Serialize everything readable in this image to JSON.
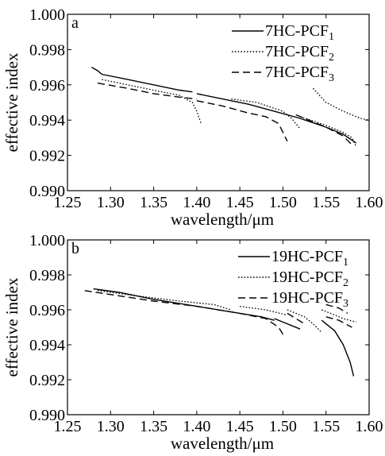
{
  "chart_data": [
    {
      "type": "line",
      "panel_label": "a",
      "xlabel": "wavelength/μm",
      "ylabel": "effective index",
      "xlim": [
        1.25,
        1.6
      ],
      "ylim": [
        0.99,
        1.0
      ],
      "xticks": [
        "1.25",
        "1.30",
        "1.35",
        "1.40",
        "1.45",
        "1.50",
        "1.55",
        "1.60"
      ],
      "yticks": [
        "0.990",
        "0.992",
        "0.994",
        "0.996",
        "0.998",
        "1.000"
      ],
      "legend_position": "top-right",
      "series": [
        {
          "name_main": "7HC-PCF",
          "name_sub": "1",
          "style": "solid",
          "segments": [
            [
              [
                1.278,
                0.997
              ],
              [
                1.285,
                0.9968
              ],
              [
                1.29,
                0.9966
              ],
              [
                1.32,
                0.9963
              ],
              [
                1.35,
                0.996
              ],
              [
                1.38,
                0.9957
              ],
              [
                1.395,
                0.9956
              ]
            ],
            [
              [
                1.4,
                0.9955
              ],
              [
                1.43,
                0.9952
              ],
              [
                1.46,
                0.9949
              ],
              [
                1.49,
                0.9945
              ],
              [
                1.52,
                0.9941
              ],
              [
                1.55,
                0.9936
              ],
              [
                1.57,
                0.9932
              ],
              [
                1.585,
                0.9927
              ]
            ]
          ]
        },
        {
          "name_main": "7HC-PCF",
          "name_sub": "2",
          "style": "dotted",
          "segments": [
            [
              [
                1.29,
                0.9963
              ],
              [
                1.32,
                0.996
              ],
              [
                1.35,
                0.9957
              ],
              [
                1.38,
                0.9954
              ],
              [
                1.395,
                0.995
              ],
              [
                1.4,
                0.9945
              ],
              [
                1.405,
                0.9938
              ]
            ],
            [
              [
                1.44,
                0.9952
              ],
              [
                1.47,
                0.995
              ],
              [
                1.5,
                0.9945
              ],
              [
                1.51,
                0.9941
              ],
              [
                1.52,
                0.9935
              ]
            ],
            [
              [
                1.52,
                0.9942
              ],
              [
                1.55,
                0.9937
              ],
              [
                1.57,
                0.9933
              ],
              [
                1.58,
                0.993
              ],
              [
                1.585,
                0.9925
              ]
            ],
            [
              [
                1.535,
                0.9958
              ],
              [
                1.55,
                0.995
              ],
              [
                1.57,
                0.9945
              ],
              [
                1.59,
                0.9941
              ],
              [
                1.6,
                0.994
              ]
            ]
          ]
        },
        {
          "name_main": "7HC-PCF",
          "name_sub": "3",
          "style": "dashed",
          "segments": [
            [
              [
                1.285,
                0.9961
              ],
              [
                1.32,
                0.9958
              ],
              [
                1.35,
                0.9955
              ],
              [
                1.38,
                0.9953
              ],
              [
                1.4,
                0.9952
              ]
            ],
            [
              [
                1.4,
                0.9951
              ],
              [
                1.43,
                0.9948
              ],
              [
                1.46,
                0.9944
              ],
              [
                1.48,
                0.9942
              ],
              [
                1.495,
                0.9938
              ],
              [
                1.505,
                0.9928
              ]
            ],
            [
              [
                1.515,
                0.9943
              ],
              [
                1.53,
                0.994
              ],
              [
                1.55,
                0.9936
              ],
              [
                1.57,
                0.9931
              ],
              [
                1.58,
                0.9926
              ]
            ]
          ]
        }
      ]
    },
    {
      "type": "line",
      "panel_label": "b",
      "xlabel": "wavelength/μm",
      "ylabel": "effective index",
      "xlim": [
        1.25,
        1.6
      ],
      "ylim": [
        0.99,
        1.0
      ],
      "xticks": [
        "1.25",
        "1.30",
        "1.35",
        "1.40",
        "1.45",
        "1.50",
        "1.55",
        "1.60"
      ],
      "yticks": [
        "0.990",
        "0.992",
        "0.994",
        "0.996",
        "0.998",
        "1.000"
      ],
      "legend_position": "top-right",
      "series": [
        {
          "name_main": "19HC-PCF",
          "name_sub": "1",
          "style": "solid",
          "segments": [
            [
              [
                1.28,
                0.9972
              ],
              [
                1.31,
                0.997
              ],
              [
                1.35,
                0.9966
              ],
              [
                1.4,
                0.9962
              ],
              [
                1.45,
                0.9958
              ],
              [
                1.475,
                0.9956
              ],
              [
                1.49,
                0.9954
              ]
            ],
            [
              [
                1.49,
                0.9955
              ],
              [
                1.5,
                0.9953
              ],
              [
                1.51,
                0.9951
              ],
              [
                1.52,
                0.9949
              ]
            ],
            [
              [
                1.545,
                0.9954
              ],
              [
                1.56,
                0.9948
              ],
              [
                1.57,
                0.994
              ],
              [
                1.578,
                0.993
              ],
              [
                1.582,
                0.9922
              ]
            ]
          ]
        },
        {
          "name_main": "19HC-PCF",
          "name_sub": "2",
          "style": "dotted",
          "segments": [
            [
              [
                1.285,
                0.9971
              ],
              [
                1.33,
                0.9968
              ],
              [
                1.38,
                0.9965
              ],
              [
                1.42,
                0.9963
              ],
              [
                1.44,
                0.996
              ]
            ],
            [
              [
                1.45,
                0.9962
              ],
              [
                1.48,
                0.996
              ],
              [
                1.505,
                0.9957
              ]
            ],
            [
              [
                1.505,
                0.996
              ],
              [
                1.515,
                0.9958
              ],
              [
                1.525,
                0.9956
              ],
              [
                1.535,
                0.9952
              ],
              [
                1.545,
                0.9947
              ]
            ],
            [
              [
                1.545,
                0.996
              ],
              [
                1.56,
                0.9957
              ],
              [
                1.57,
                0.9955
              ],
              [
                1.585,
                0.9953
              ]
            ]
          ]
        },
        {
          "name_main": "19HC-PCF",
          "name_sub": "3",
          "style": "dashed",
          "segments": [
            [
              [
                1.27,
                0.9971
              ],
              [
                1.31,
                0.9968
              ],
              [
                1.35,
                0.9965
              ],
              [
                1.4,
                0.9962
              ],
              [
                1.45,
                0.9958
              ],
              [
                1.48,
                0.9955
              ],
              [
                1.495,
                0.995
              ],
              [
                1.5,
                0.9946
              ]
            ],
            [
              [
                1.505,
                0.9958
              ],
              [
                1.515,
                0.9955
              ],
              [
                1.525,
                0.9952
              ]
            ],
            [
              [
                1.55,
                0.9963
              ],
              [
                1.565,
                0.9961
              ],
              [
                1.575,
                0.9958
              ]
            ],
            [
              [
                1.55,
                0.9956
              ],
              [
                1.565,
                0.9954
              ],
              [
                1.58,
                0.995
              ]
            ]
          ]
        }
      ]
    }
  ]
}
